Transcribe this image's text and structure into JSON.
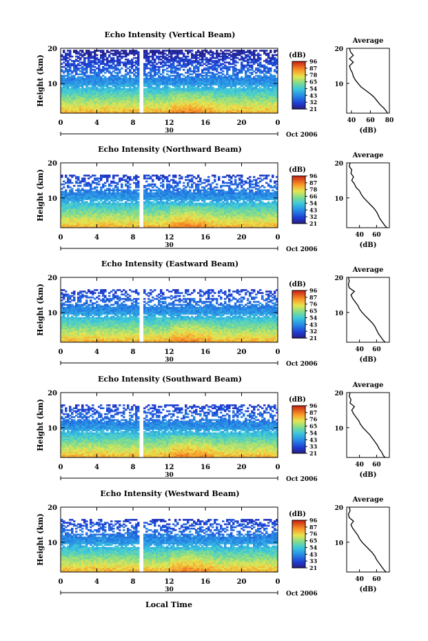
{
  "figure": {
    "ylabel": "Height (km)",
    "xlabel": "Local Time",
    "date_label": "Oct 2006",
    "day_label": "30",
    "cbar_unit": "(dB)",
    "avg_title": "Average",
    "avg_xlabel": "(dB)"
  },
  "chart_data": [
    {
      "type": "heatmap",
      "title": "Echo Intensity (Vertical Beam)",
      "x_ticks": [
        "0",
        "4",
        "8",
        "12",
        "16",
        "20",
        "0"
      ],
      "xlim": [
        0,
        24
      ],
      "y_ticks": [
        "10",
        "20"
      ],
      "ylim": [
        1.5,
        20
      ],
      "colorbar_ticks": [
        "96",
        "87",
        "78",
        "65",
        "54",
        "43",
        "32",
        "21"
      ],
      "clim": [
        21,
        96
      ],
      "gap_hours": [
        8.6,
        9.1
      ],
      "cloud_top_km": 19.5,
      "average_profile": {
        "xlim": [
          35,
          80
        ],
        "x_ticks": [
          "40",
          "60",
          "80"
        ],
        "height_km": [
          1.5,
          2,
          3,
          4,
          5,
          6,
          7,
          8,
          9,
          10,
          11,
          12,
          13,
          14,
          15,
          16,
          17,
          18,
          19,
          20
        ],
        "db": [
          78,
          77,
          74,
          70,
          67,
          64,
          60,
          55,
          50,
          47,
          44,
          42,
          41,
          39,
          38,
          42,
          38,
          42,
          39,
          38
        ]
      }
    },
    {
      "type": "heatmap",
      "title": "Echo Intensity (Northward Beam)",
      "x_ticks": [
        "0",
        "4",
        "8",
        "12",
        "16",
        "20",
        "0"
      ],
      "xlim": [
        0,
        24
      ],
      "y_ticks": [
        "10",
        "20"
      ],
      "ylim": [
        1.5,
        20
      ],
      "colorbar_ticks": [
        "96",
        "87",
        "78",
        "66",
        "54",
        "43",
        "32",
        "21"
      ],
      "clim": [
        21,
        96
      ],
      "gap_hours": [
        8.6,
        9.1
      ],
      "cloud_top_km": 16.5,
      "average_profile": {
        "xlim": [
          25,
          75
        ],
        "x_ticks": [
          "40",
          "60"
        ],
        "height_km": [
          1.5,
          2,
          3,
          4,
          5,
          6,
          7,
          8,
          9,
          10,
          11,
          12,
          13,
          14,
          15,
          16,
          17,
          18,
          19,
          20
        ],
        "db": [
          72,
          70,
          67,
          64,
          62,
          60,
          57,
          53,
          49,
          45,
          42,
          40,
          36,
          34,
          31,
          33,
          30,
          31,
          28,
          29
        ]
      }
    },
    {
      "type": "heatmap",
      "title": "Echo Intensity (Eastward Beam)",
      "x_ticks": [
        "0",
        "4",
        "8",
        "12",
        "16",
        "20",
        "0"
      ],
      "xlim": [
        0,
        24
      ],
      "y_ticks": [
        "10",
        "20"
      ],
      "ylim": [
        1.5,
        20
      ],
      "colorbar_ticks": [
        "96",
        "87",
        "76",
        "65",
        "54",
        "43",
        "32",
        "21"
      ],
      "clim": [
        21,
        96
      ],
      "gap_hours": [
        8.6,
        9.1
      ],
      "cloud_top_km": 16.5,
      "average_profile": {
        "xlim": [
          25,
          75
        ],
        "x_ticks": [
          "40",
          "60"
        ],
        "height_km": [
          1.5,
          2,
          3,
          4,
          5,
          6,
          7,
          8,
          9,
          10,
          11,
          12,
          13,
          14,
          15,
          16,
          17,
          18,
          19,
          20
        ],
        "db": [
          70,
          68,
          65,
          62,
          60,
          58,
          55,
          51,
          47,
          43,
          40,
          38,
          35,
          32,
          30,
          34,
          28,
          27,
          28,
          27
        ]
      }
    },
    {
      "type": "heatmap",
      "title": "Echo Intensity (Southward Beam)",
      "x_ticks": [
        "0",
        "4",
        "8",
        "12",
        "16",
        "20",
        "0"
      ],
      "xlim": [
        0,
        24
      ],
      "y_ticks": [
        "10",
        "20"
      ],
      "ylim": [
        1.5,
        20
      ],
      "colorbar_ticks": [
        "96",
        "87",
        "76",
        "65",
        "54",
        "43",
        "33",
        "21"
      ],
      "clim": [
        21,
        96
      ],
      "gap_hours": [
        8.6,
        9.1
      ],
      "cloud_top_km": 16.5,
      "average_profile": {
        "xlim": [
          25,
          75
        ],
        "x_ticks": [
          "40",
          "60"
        ],
        "height_km": [
          1.5,
          2,
          3,
          4,
          5,
          6,
          7,
          8,
          9,
          10,
          11,
          12,
          13,
          14,
          15,
          16,
          17,
          18,
          19,
          20
        ],
        "db": [
          70,
          68,
          66,
          63,
          61,
          58,
          55,
          52,
          48,
          44,
          41,
          39,
          36,
          33,
          31,
          34,
          29,
          30,
          28,
          29
        ]
      }
    },
    {
      "type": "heatmap",
      "title": "Echo Intensity (Westward Beam)",
      "x_ticks": [
        "0",
        "4",
        "8",
        "12",
        "16",
        "20",
        "0"
      ],
      "xlim": [
        0,
        24
      ],
      "y_ticks": [
        "10",
        "20"
      ],
      "ylim": [
        1.5,
        20
      ],
      "colorbar_ticks": [
        "96",
        "87",
        "76",
        "65",
        "54",
        "43",
        "33",
        "21"
      ],
      "clim": [
        21,
        96
      ],
      "gap_hours": [
        8.6,
        9.1
      ],
      "cloud_top_km": 16.5,
      "average_profile": {
        "xlim": [
          25,
          75
        ],
        "x_ticks": [
          "40",
          "60"
        ],
        "height_km": [
          1.5,
          2,
          3,
          4,
          5,
          6,
          7,
          8,
          9,
          10,
          11,
          12,
          13,
          14,
          15,
          16,
          17,
          18,
          19,
          20
        ],
        "db": [
          71,
          69,
          66,
          63,
          60,
          58,
          55,
          51,
          47,
          43,
          40,
          38,
          35,
          32,
          30,
          33,
          28,
          27,
          29,
          28
        ]
      }
    }
  ]
}
